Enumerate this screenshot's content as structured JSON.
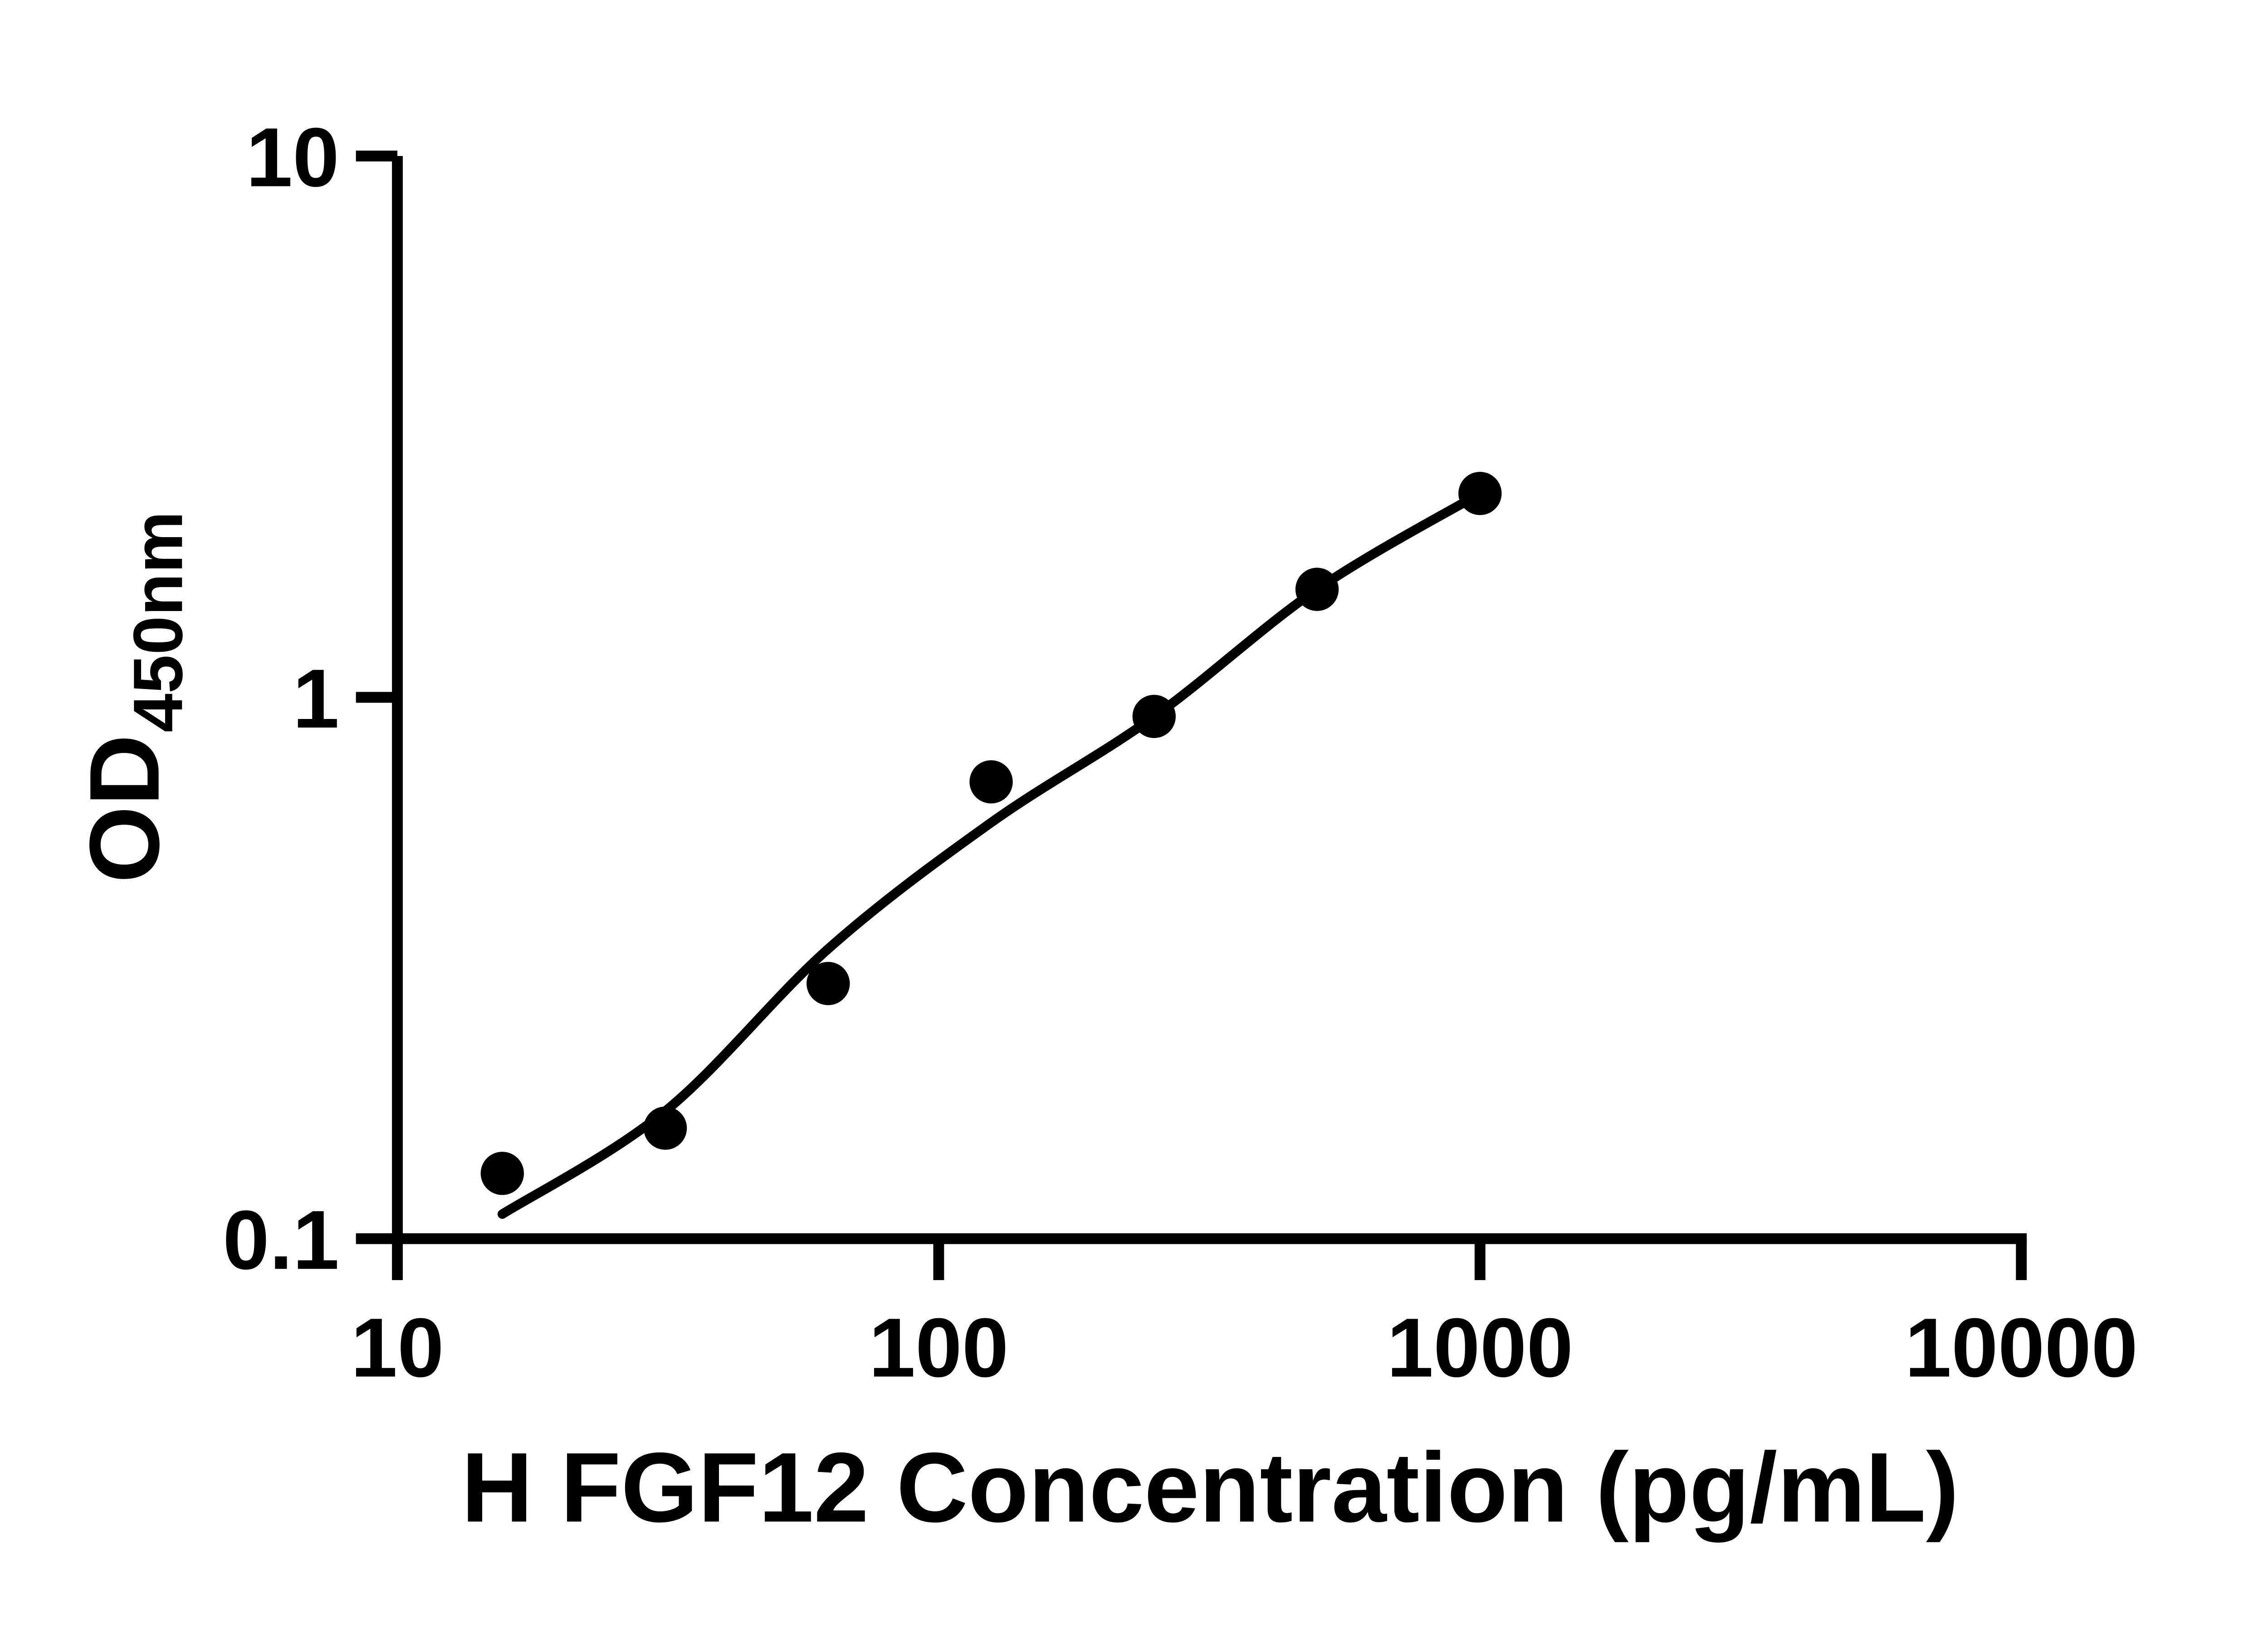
{
  "colors": {
    "foreground": "#000000",
    "background": "#ffffff"
  },
  "chart_data": {
    "type": "scatter",
    "title": "",
    "xlabel": "H FGF12 Concentration (pg/mL)",
    "ylabel_main": "OD",
    "ylabel_sub": "450nm",
    "log_x": true,
    "log_y": true,
    "xlim": [
      10,
      10000
    ],
    "ylim": [
      0.1,
      10
    ],
    "grid": false,
    "legend": "none",
    "x_ticks": [
      {
        "value": 10,
        "label": "10"
      },
      {
        "value": 100,
        "label": "100"
      },
      {
        "value": 1000,
        "label": "1000"
      },
      {
        "value": 10000,
        "label": "10000"
      }
    ],
    "y_ticks": [
      {
        "value": 10,
        "label": "10"
      },
      {
        "value": 1,
        "label": "1"
      },
      {
        "value": 0.1,
        "label": "0.1"
      }
    ],
    "points": [
      {
        "x": 15.625,
        "od": 0.132
      },
      {
        "x": 31.25,
        "od": 0.16
      },
      {
        "x": 62.5,
        "od": 0.296
      },
      {
        "x": 125,
        "od": 0.698
      },
      {
        "x": 250,
        "od": 0.922
      },
      {
        "x": 500,
        "od": 1.583
      },
      {
        "x": 1000,
        "od": 2.38
      }
    ],
    "fit_curve": [
      {
        "x": 15.625,
        "od": 0.111
      },
      {
        "x": 31.25,
        "od": 0.172
      },
      {
        "x": 62.5,
        "od": 0.343
      },
      {
        "x": 125,
        "od": 0.587
      },
      {
        "x": 250,
        "od": 0.921
      },
      {
        "x": 500,
        "od": 1.583
      },
      {
        "x": 1000,
        "od": 2.38
      }
    ]
  }
}
